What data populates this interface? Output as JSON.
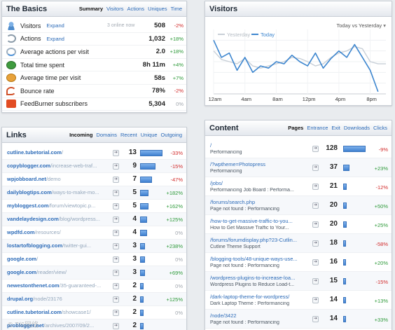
{
  "basics": {
    "title": "The Basics",
    "tabs": [
      "Summary",
      "Visitors",
      "Actions",
      "Uniques",
      "Time"
    ],
    "rows": [
      {
        "label": "Visitors",
        "expand": "Expand",
        "sub": "3 online now",
        "value": "508",
        "pct": "-2%",
        "trend": "neg",
        "icon": "visitors-icon"
      },
      {
        "label": "Actions",
        "expand": "Expand",
        "sub": "",
        "value": "1,032",
        "pct": "+18%",
        "trend": "pos",
        "icon": "actions-icon"
      },
      {
        "label": "Average actions per visit",
        "expand": "",
        "sub": "",
        "value": "2.0",
        "pct": "+18%",
        "trend": "pos",
        "icon": "average-icon"
      },
      {
        "label": "Total time spent",
        "expand": "",
        "sub": "",
        "value": "8h 11m",
        "pct": "+4%",
        "trend": "pos",
        "icon": "clock-icon"
      },
      {
        "label": "Average time per visit",
        "expand": "",
        "sub": "",
        "value": "58s",
        "pct": "+7%",
        "trend": "pos",
        "icon": "timer-icon"
      },
      {
        "label": "Bounce rate",
        "expand": "",
        "sub": "",
        "value": "78%",
        "pct": "-2%",
        "trend": "neg",
        "icon": "bounce-icon"
      },
      {
        "label": "FeedBurner subscribers",
        "expand": "",
        "sub": "",
        "value": "5,304",
        "pct": "0%",
        "trend": "zero",
        "icon": "feedburner-icon"
      }
    ]
  },
  "visitors": {
    "title": "Visitors",
    "selector": "Today vs Yesterday",
    "selector_icon": "dropdown-arrow-icon",
    "legend_yesterday": "Yesterday",
    "legend_today": "Today",
    "colors": {
      "today": "#3d86cf",
      "yesterday": "#c8cfd7"
    }
  },
  "chart_data": {
    "type": "line",
    "x": [
      "12am",
      "1am",
      "2am",
      "3am",
      "4am",
      "5am",
      "6am",
      "7am",
      "8am",
      "9am",
      "10am",
      "11am",
      "12pm",
      "1pm",
      "2pm",
      "3pm",
      "4pm",
      "5pm",
      "6pm",
      "7pm",
      "8pm",
      "9pm",
      "10pm"
    ],
    "tick_labels": [
      "12am",
      "4am",
      "8am",
      "12pm",
      "4pm",
      "8pm"
    ],
    "ylim": [
      0,
      60
    ],
    "yticks": [
      10,
      20,
      30,
      40,
      50
    ],
    "series": [
      {
        "name": "Yesterday",
        "values": [
          40,
          32,
          30,
          28,
          33,
          26,
          24,
          26,
          28,
          30,
          34,
          33,
          30,
          26,
          28,
          34,
          38,
          40,
          44,
          42,
          30,
          28,
          28
        ]
      },
      {
        "name": "Today",
        "values": [
          50,
          34,
          38,
          22,
          34,
          20,
          26,
          24,
          30,
          28,
          36,
          30,
          26,
          38,
          24,
          33,
          40,
          34,
          46,
          34,
          22,
          2,
          null
        ]
      }
    ]
  },
  "links": {
    "title": "Links",
    "tabs": [
      "Incoming",
      "Domains",
      "Recent",
      "Unique",
      "Outgoing"
    ],
    "rows": [
      {
        "domain": "cutline.tubetorial.com",
        "path": "/",
        "count": "13",
        "bar": 1.0,
        "pct": "-33%",
        "trend": "neg"
      },
      {
        "domain": "copyblogger.com",
        "path": "/increase-web-traf...",
        "count": "9",
        "bar": 0.69,
        "pct": "-15%",
        "trend": "neg"
      },
      {
        "domain": "wpjobboard.net",
        "path": "/demo",
        "count": "7",
        "bar": 0.54,
        "pct": "-47%",
        "trend": "neg"
      },
      {
        "domain": "dailyblogtips.com",
        "path": "/ways-to-make-mo...",
        "count": "5",
        "bar": 0.38,
        "pct": "+182%",
        "trend": "pos"
      },
      {
        "domain": "mybloggest.com",
        "path": "/forum/viewtopic.p...",
        "count": "5",
        "bar": 0.38,
        "pct": "+162%",
        "trend": "pos"
      },
      {
        "domain": "vandelaydesign.com",
        "path": "/blog/wordpress...",
        "count": "4",
        "bar": 0.31,
        "pct": "+125%",
        "trend": "pos"
      },
      {
        "domain": "wpdfd.com",
        "path": "/resources/",
        "count": "4",
        "bar": 0.31,
        "pct": "0%",
        "trend": "zero"
      },
      {
        "domain": "lostartofblogging.com",
        "path": "/twitter-gui...",
        "count": "3",
        "bar": 0.23,
        "pct": "+238%",
        "trend": "pos"
      },
      {
        "domain": "google.com",
        "path": "/",
        "count": "3",
        "bar": 0.23,
        "pct": "0%",
        "trend": "zero"
      },
      {
        "domain": "google.com",
        "path": "/reader/view/",
        "count": "3",
        "bar": 0.23,
        "pct": "+69%",
        "trend": "pos"
      },
      {
        "domain": "newestonthenet.com",
        "path": "/35-guaranteed-...",
        "count": "2",
        "bar": 0.15,
        "pct": "0%",
        "trend": "zero"
      },
      {
        "domain": "drupal.org",
        "path": "/node/23176",
        "count": "2",
        "bar": 0.15,
        "pct": "+125%",
        "trend": "pos"
      },
      {
        "domain": "cutline.tubetorial.com",
        "path": "/showcase1/",
        "count": "2",
        "bar": 0.15,
        "pct": "0%",
        "trend": "zero"
      },
      {
        "domain": "problogger.net",
        "path": "/archives/2007/09/2...",
        "count": "2",
        "bar": 0.15,
        "pct": "",
        "trend": "zero"
      }
    ]
  },
  "content": {
    "title": "Content",
    "tabs": [
      "Pages",
      "Entrance",
      "Exit",
      "Downloads",
      "Clicks"
    ],
    "rows": [
      {
        "url": "/",
        "page": "Performancing",
        "count": "128",
        "bar": 1.0,
        "pct": "-9%",
        "trend": "neg"
      },
      {
        "url": "/?wptheme=Photopress",
        "page": "Performancing",
        "count": "37",
        "bar": 0.29,
        "pct": "+23%",
        "trend": "pos"
      },
      {
        "url": "/jobs/",
        "page": "Performancing Job Board : Performa...",
        "count": "21",
        "bar": 0.17,
        "pct": "-12%",
        "trend": "neg"
      },
      {
        "url": "/forums/search.php",
        "page": "Page not found : Performancing",
        "count": "20",
        "bar": 0.16,
        "pct": "+50%",
        "trend": "pos"
      },
      {
        "url": "/how-to-get-massive-traffic-to-you...",
        "page": "How to Get Massive Traffic to Your...",
        "count": "20",
        "bar": 0.16,
        "pct": "+25%",
        "trend": "pos"
      },
      {
        "url": "/forums/forumdisplay.php?23-Cutlin...",
        "page": "Cutline Theme Support",
        "count": "18",
        "bar": 0.14,
        "pct": "-58%",
        "trend": "neg"
      },
      {
        "url": "/blogging-tools/48-unique-ways-use...",
        "page": "Page not found : Performancing",
        "count": "16",
        "bar": 0.13,
        "pct": "+20%",
        "trend": "pos"
      },
      {
        "url": "/wordpress-plugins-to-increase-loa...",
        "page": "Wordpress Plugins to Reduce Load-t...",
        "count": "15",
        "bar": 0.12,
        "pct": "-15%",
        "trend": "neg"
      },
      {
        "url": "/dark-laptop-theme-for-wordpress/",
        "page": "Dark Laptop Theme : Performancing",
        "count": "14",
        "bar": 0.11,
        "pct": "+13%",
        "trend": "pos"
      },
      {
        "url": "/node/3422",
        "page": "Page not found : Performancing",
        "count": "14",
        "bar": 0.11,
        "pct": "+33%",
        "trend": "pos"
      }
    ]
  },
  "watermark": "© 7/6网络"
}
